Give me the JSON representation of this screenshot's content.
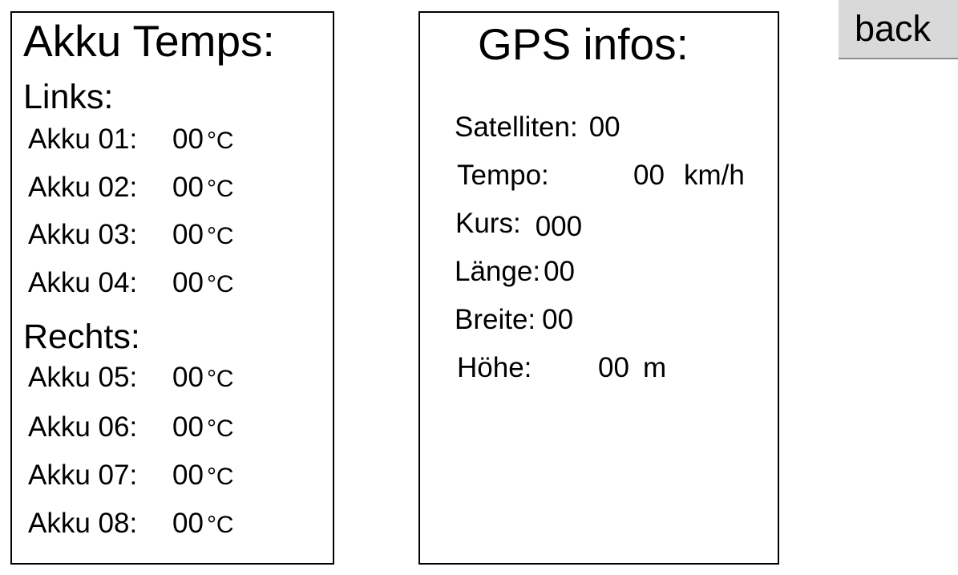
{
  "akku_panel": {
    "title": "Akku Temps:",
    "left_section": "Links:",
    "right_section": "Rechts:",
    "unit": "°C",
    "rows": [
      {
        "label": "Akku 01:",
        "value": "00"
      },
      {
        "label": "Akku 02:",
        "value": "00"
      },
      {
        "label": "Akku 03:",
        "value": "00"
      },
      {
        "label": "Akku 04:",
        "value": "00"
      },
      {
        "label": "Akku 05:",
        "value": "00"
      },
      {
        "label": "Akku 06:",
        "value": "00"
      },
      {
        "label": "Akku 07:",
        "value": "00"
      },
      {
        "label": "Akku 08:",
        "value": "00"
      }
    ]
  },
  "gps_panel": {
    "title": "GPS infos:",
    "satellites": {
      "label": "Satelliten:",
      "value": "00"
    },
    "speed": {
      "label": "Tempo:",
      "value": "00",
      "unit": "km/h"
    },
    "course": {
      "label": "Kurs:",
      "value": "000"
    },
    "longitude": {
      "label": "Länge:",
      "value": "00"
    },
    "latitude": {
      "label": "Breite:",
      "value": "00"
    },
    "altitude": {
      "label": "Höhe:",
      "value": "00",
      "unit": "m"
    }
  },
  "back_button": {
    "label": "back"
  },
  "colors": {
    "background": "#ffffff",
    "border": "#000000",
    "button_bg": "#d9d9d9"
  }
}
